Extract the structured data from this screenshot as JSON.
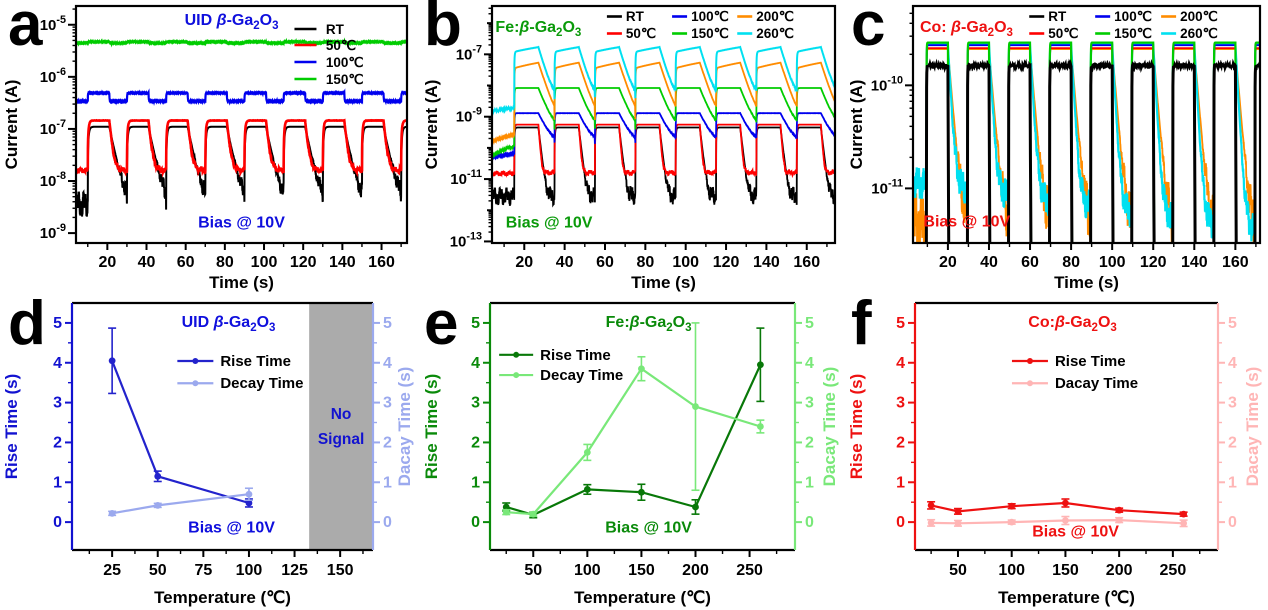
{
  "figure": {
    "panel_letters": [
      "a",
      "b",
      "c",
      "d",
      "e",
      "f"
    ],
    "background": "#ffffff"
  },
  "chart_data": [
    {
      "panel": "a",
      "type": "pulse-log",
      "title": {
        "segments": [
          {
            "t": "UID "
          },
          {
            "t": "β",
            "i": true
          },
          {
            "t": "-Ga"
          },
          {
            "t": "2",
            "s": true
          },
          {
            "t": "O"
          },
          {
            "t": "3",
            "s": true
          }
        ],
        "color": "#0f0fdd"
      },
      "xlabel": "Time (s)",
      "ylabel": "Current (A)",
      "xlim": [
        4,
        173
      ],
      "xticks": [
        20,
        40,
        60,
        80,
        100,
        120,
        140,
        160
      ],
      "ylim_exp": [
        -9.19,
        -4.64
      ],
      "ytick_exps": [
        -9,
        -8,
        -7,
        -6,
        -5
      ],
      "pulse": {
        "t0": 10,
        "period": 20,
        "on": 11
      },
      "bias": {
        "label": "Bias @ 10V",
        "color": "#0f0fdd"
      },
      "legend": {
        "entries": [
          {
            "label": "RT",
            "color": "#000000"
          },
          {
            "label": "50℃",
            "color": "#ff0000"
          },
          {
            "label": "100℃",
            "color": "#0000ee"
          },
          {
            "label": "150℃",
            "color": "#00cc00"
          }
        ]
      },
      "series": [
        {
          "name": "RT",
          "color": "#000000",
          "lw": 2.0,
          "i_on": 1.1e-07,
          "i_off": 3.6e-09,
          "rise_tau": 0.5,
          "decay_tau": 2.4,
          "noise": 0.24,
          "seed": 1
        },
        {
          "name": "50℃",
          "color": "#ff0000",
          "lw": 2.6,
          "i_on": 1.45e-07,
          "i_off": 1.6e-08,
          "rise_tau": 0.45,
          "decay_tau": 1.1,
          "noise": 0.05,
          "seed": 2
        },
        {
          "name": "100℃",
          "color": "#0000ee",
          "lw": 2.2,
          "i_on": 4.9e-07,
          "i_off": 3.4e-07,
          "rise_tau": 0.12,
          "decay_tau": 0.12,
          "noise": 0.012,
          "seed": 3
        },
        {
          "name": "150℃",
          "color": "#00cc00",
          "lw": 2.2,
          "i_on": 4.7e-06,
          "i_off": 4.45e-06,
          "rise_tau": 0.1,
          "decay_tau": 0.1,
          "noise": 0.01,
          "seed": 4
        }
      ]
    },
    {
      "panel": "b",
      "type": "pulse-log",
      "title": {
        "segments": [
          {
            "t": "Fe:"
          },
          {
            "t": "β",
            "i": true
          },
          {
            "t": "-Ga"
          },
          {
            "t": "2",
            "s": true
          },
          {
            "t": "O"
          },
          {
            "t": "3",
            "s": true
          }
        ],
        "color": "#0a9a0a"
      },
      "xlabel": "Time (s)",
      "ylabel": "Current (A)",
      "xlim": [
        4,
        174
      ],
      "xticks": [
        20,
        40,
        60,
        80,
        100,
        120,
        140,
        160
      ],
      "ylim_exp": [
        -13.05,
        -5.45
      ],
      "ytick_exps": [
        -13,
        -11,
        -9,
        -7
      ],
      "pulse": {
        "t0": 15,
        "period": 20,
        "on": 12
      },
      "bias": {
        "label": "Bias @ 10V",
        "color": "#0a9a0a"
      },
      "legend": {
        "entries": [
          {
            "label": "RT",
            "color": "#000000"
          },
          {
            "label": "50℃",
            "color": "#ff0000"
          },
          {
            "label": "100℃",
            "color": "#0000ee"
          },
          {
            "label": "150℃",
            "color": "#00cc00"
          },
          {
            "label": "200℃",
            "color": "#ff8c00"
          },
          {
            "label": "260℃",
            "color": "#00e0f0"
          }
        ]
      },
      "series": [
        {
          "name": "RT",
          "color": "#000000",
          "lw": 1.8,
          "i_on": 4.5e-10,
          "i_off": 2.8e-12,
          "rise_tau": 0.25,
          "decay_tau": 0.8,
          "noise": 0.28,
          "seed": 1
        },
        {
          "name": "50℃",
          "color": "#ff0000",
          "lw": 1.8,
          "i_on": 5.6e-10,
          "i_off": 1.6e-11,
          "rise_tau": 0.25,
          "decay_tau": 0.5,
          "noise": 0.08,
          "seed": 2,
          "init": [
            1.5e-11,
            60
          ]
        },
        {
          "name": "100℃",
          "color": "#0000ee",
          "lw": 1.8,
          "i_on": 1.3e-09,
          "i_off": 1.4e-10,
          "rise_tau": 0.2,
          "decay_tau": 3.0,
          "noise": 0.03,
          "seed": 3,
          "init": [
            5e-11,
            60
          ]
        },
        {
          "name": "150℃",
          "color": "#00cc00",
          "lw": 1.8,
          "i_on": 8.3e-09,
          "i_off": 4e-10,
          "rise_tau": 0.2,
          "decay_tau": 2.6,
          "noise": 0.03,
          "seed": 4,
          "init": [
            5.5e-11,
            60
          ]
        },
        {
          "name": "200℃",
          "color": "#ff8c00",
          "lw": 1.8,
          "i_on": 3.6e-08,
          "i_off": 8e-10,
          "rise_tau": 0.2,
          "decay_tau": 2.2,
          "noise": 0.03,
          "ramp": 0.5,
          "seed": 5,
          "init": [
            1.6e-10,
            60
          ]
        },
        {
          "name": "260℃",
          "color": "#00e0f0",
          "lw": 2.0,
          "i_on": 1.2e-07,
          "i_off": 4e-09,
          "rise_tau": 0.2,
          "decay_tau": 2.0,
          "noise": 0.04,
          "ramp": 0.42,
          "seed": 6,
          "init": [
            1.5e-09,
            60
          ]
        }
      ]
    },
    {
      "panel": "c",
      "type": "pulse-log",
      "title": {
        "segments": [
          {
            "t": "Co: "
          },
          {
            "t": "β",
            "i": true
          },
          {
            "t": "-Ga"
          },
          {
            "t": "2",
            "s": true
          },
          {
            "t": "O"
          },
          {
            "t": "3",
            "s": true
          }
        ],
        "color": "#ee1111"
      },
      "xlabel": "Time (s)",
      "ylabel": "Current (A)",
      "xlim": [
        3,
        172
      ],
      "xticks": [
        20,
        40,
        60,
        80,
        100,
        120,
        140,
        160
      ],
      "ylim_exp": [
        -11.53,
        -9.23
      ],
      "ytick_exps": [
        -11,
        -10
      ],
      "pulse": {
        "t0": 9.5,
        "period": 20,
        "on": 10.5
      },
      "bias": {
        "label": "Bias @ 10V",
        "color": "#ee1111"
      },
      "legend": {
        "entries": [
          {
            "label": "RT",
            "color": "#000000"
          },
          {
            "label": "50℃",
            "color": "#ff0000"
          },
          {
            "label": "100℃",
            "color": "#0000ee"
          },
          {
            "label": "150℃",
            "color": "#00cc00"
          },
          {
            "label": "200℃",
            "color": "#ff8c00"
          },
          {
            "label": "260℃",
            "color": "#00e0f0"
          }
        ]
      },
      "series": [
        {
          "name": "200℃",
          "color": "#ff8c00",
          "lw": 1.8,
          "i_on": 2.25e-10,
          "off_drift": [
            4.5e-12,
            3.2e-12
          ],
          "rise_tau": 0.12,
          "decay_tau": 1.8,
          "noise": 0.3,
          "seed": 5
        },
        {
          "name": "260℃",
          "color": "#00e0f0",
          "lw": 2.2,
          "i_on": 2.5e-10,
          "off_drift": [
            1.15e-11,
            3.8e-12
          ],
          "rise_tau": 0.12,
          "decay_tau": 1.2,
          "noise": 0.15,
          "seed": 6
        },
        {
          "name": "50℃",
          "color": "#ff0000",
          "lw": 1.8,
          "i_on": 2.3e-10,
          "i_off": 3e-13,
          "rise_tau": 0.1,
          "decay_tau": 0.1,
          "seed": 2
        },
        {
          "name": "100℃",
          "color": "#0000ee",
          "lw": 1.8,
          "i_on": 2.45e-10,
          "i_off": 3e-13,
          "rise_tau": 0.1,
          "decay_tau": 0.1,
          "seed": 3
        },
        {
          "name": "150℃",
          "color": "#00cc00",
          "lw": 2.2,
          "i_on": 2.6e-10,
          "i_off": 3e-13,
          "rise_tau": 0.1,
          "decay_tau": 0.1,
          "seed": 4
        },
        {
          "name": "RT",
          "color": "#000000",
          "lw": 3.0,
          "i_on": 1.55e-10,
          "i_off": 3e-13,
          "rise_tau": 0.1,
          "decay_tau": 0.1,
          "noise_on": 0.015,
          "seed": 1
        }
      ]
    },
    {
      "panel": "d",
      "type": "line-errorbar",
      "title": {
        "segments": [
          {
            "t": "UID "
          },
          {
            "t": "β",
            "i": true
          },
          {
            "t": "-Ga"
          },
          {
            "t": "2",
            "s": true
          },
          {
            "t": "O"
          },
          {
            "t": "3",
            "s": true
          }
        ],
        "color": "#0f0fdd"
      },
      "xlabel": "Temperature (℃)",
      "ylabel_left": "Rise Time (s)",
      "ylabel_right": "Dacay Time (s)",
      "xlim": [
        3,
        168
      ],
      "xticks": [
        25,
        50,
        75,
        100,
        125,
        150
      ],
      "ylim": [
        -0.7,
        5.5
      ],
      "yticks": [
        0,
        1,
        2,
        3,
        4,
        5
      ],
      "axis_color_left": "#1212d0",
      "axis_color_right": "#9ba9ee",
      "no_signal": {
        "from": 133,
        "color": "#ababab",
        "lines": [
          "No",
          "Signal"
        ],
        "text_color": "#1212d0"
      },
      "bias": {
        "label": "Bias @ 10V",
        "color": "#0f0fdd"
      },
      "legend": {
        "entries": [
          {
            "label": "Rise Time",
            "color": "#2323cc"
          },
          {
            "label": "Decay Time",
            "color": "#9ba9ee"
          }
        ]
      },
      "series": [
        {
          "name": "Rise Time",
          "axis": "left",
          "color": "#2323cc",
          "x": [
            25,
            50,
            100
          ],
          "y": [
            4.05,
            1.15,
            0.48
          ],
          "err": [
            0.82,
            0.13,
            0.1
          ]
        },
        {
          "name": "Decay Time",
          "axis": "right",
          "color": "#9ba9ee",
          "x": [
            25,
            50,
            100
          ],
          "y": [
            0.22,
            0.42,
            0.7
          ],
          "err": [
            0.05,
            0.05,
            0.15
          ]
        }
      ]
    },
    {
      "panel": "e",
      "type": "line-errorbar",
      "title": {
        "segments": [
          {
            "t": "Fe:"
          },
          {
            "t": "β",
            "i": true
          },
          {
            "t": "-Ga"
          },
          {
            "t": "2",
            "s": true
          },
          {
            "t": "O"
          },
          {
            "t": "3",
            "s": true
          }
        ],
        "color": "#0a8a0a"
      },
      "xlabel": "Temperature (℃)",
      "ylabel_left": "Rise Time (s)",
      "ylabel_right": "Dacay Time (s)",
      "xlim": [
        10,
        292
      ],
      "xticks": [
        50,
        100,
        150,
        200,
        250
      ],
      "ylim": [
        -0.7,
        5.5
      ],
      "yticks": [
        0,
        1,
        2,
        3,
        4,
        5
      ],
      "axis_color_left": "#0a8a0a",
      "axis_color_right": "#79e879",
      "bias": {
        "label": "Bias @ 10V",
        "color": "#0a8a0a"
      },
      "legend": {
        "entries": [
          {
            "label": "Rise Time",
            "color": "#087808"
          },
          {
            "label": "Decay Time",
            "color": "#79e879"
          }
        ]
      },
      "series": [
        {
          "name": "Rise Time",
          "axis": "left",
          "color": "#087808",
          "x": [
            25,
            50,
            100,
            150,
            200,
            260
          ],
          "y": [
            0.38,
            0.18,
            0.82,
            0.75,
            0.38,
            3.95
          ],
          "err": [
            0.1,
            0.07,
            0.12,
            0.2,
            0.18,
            0.92
          ]
        },
        {
          "name": "Decay Time",
          "axis": "right",
          "color": "#79e879",
          "x": [
            25,
            50,
            100,
            150,
            200,
            260
          ],
          "y": [
            0.25,
            0.2,
            1.75,
            3.85,
            2.9,
            2.4
          ],
          "err": [
            0.06,
            0.05,
            0.2,
            0.3,
            2.1,
            0.16
          ]
        }
      ]
    },
    {
      "panel": "f",
      "type": "line-errorbar",
      "title": {
        "segments": [
          {
            "t": "Co:"
          },
          {
            "t": "β",
            "i": true
          },
          {
            "t": "-Ga"
          },
          {
            "t": "2",
            "s": true
          },
          {
            "t": "O"
          },
          {
            "t": "3",
            "s": true
          }
        ],
        "color": "#ee1111"
      },
      "xlabel": "Temperature (℃)",
      "ylabel_left": "Rise Time (s)",
      "ylabel_right": "Dacay Time (s)",
      "xlim": [
        10,
        292
      ],
      "xticks": [
        50,
        100,
        150,
        200,
        250
      ],
      "ylim": [
        -0.7,
        5.5
      ],
      "yticks": [
        0,
        1,
        2,
        3,
        4,
        5
      ],
      "axis_color_left": "#ee1111",
      "axis_color_right": "#ffb5b5",
      "bias": {
        "label": "Bias @ 10V",
        "color": "#ee1111"
      },
      "legend": {
        "entries": [
          {
            "label": "Rise Time",
            "color": "#ee1111"
          },
          {
            "label": "Dacay Time",
            "color": "#ffb5b5"
          }
        ]
      },
      "series": [
        {
          "name": "Rise Time",
          "axis": "left",
          "color": "#ee1111",
          "x": [
            25,
            50,
            100,
            150,
            200,
            260
          ],
          "y": [
            0.42,
            0.27,
            0.4,
            0.48,
            0.3,
            0.2
          ],
          "err": [
            0.09,
            0.07,
            0.06,
            0.1,
            0.05,
            0.05
          ]
        },
        {
          "name": "Dacay Time",
          "axis": "right",
          "color": "#ffb5b5",
          "x": [
            25,
            50,
            100,
            150,
            200,
            260
          ],
          "y": [
            -0.02,
            -0.03,
            0.0,
            0.04,
            0.05,
            -0.03
          ],
          "err": [
            0.08,
            0.07,
            0.05,
            0.1,
            0.06,
            0.08
          ]
        }
      ]
    }
  ]
}
